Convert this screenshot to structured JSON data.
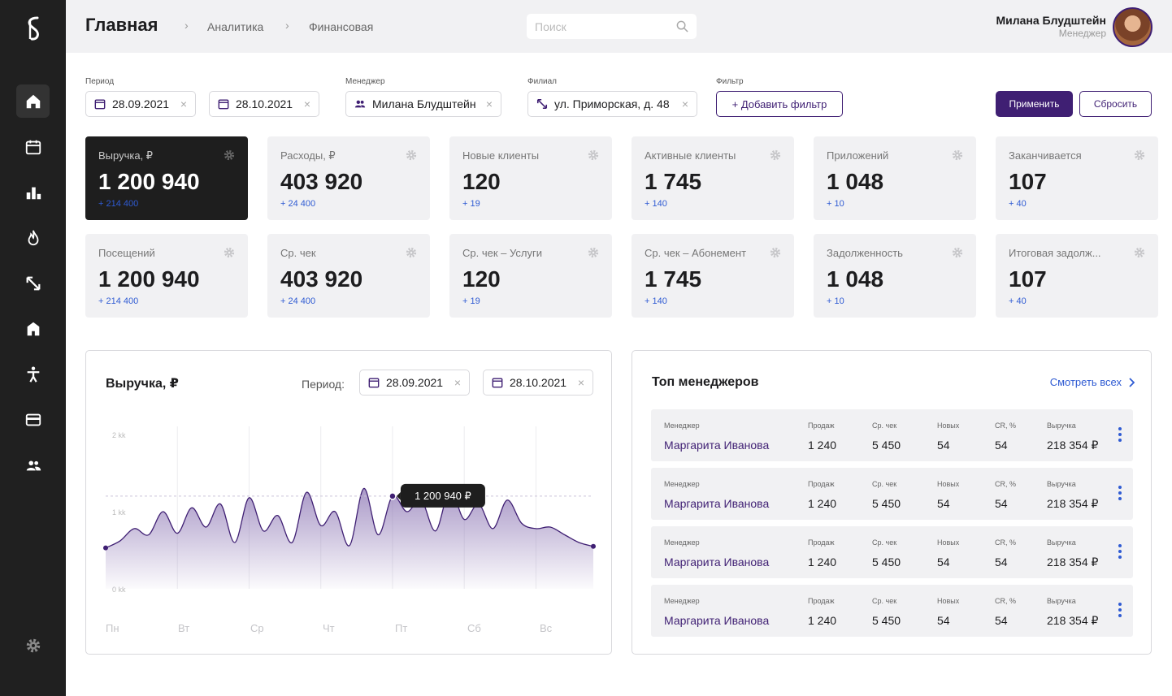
{
  "sidebar": {
    "logo_icon": "brand-logo-icon",
    "items": [
      {
        "icon": "home-icon",
        "active": true
      },
      {
        "icon": "calendar-icon",
        "active": false
      },
      {
        "icon": "bar-chart-icon",
        "active": false
      },
      {
        "icon": "fire-icon",
        "active": false
      },
      {
        "icon": "expand-arrows-icon",
        "active": false
      },
      {
        "icon": "building-icon",
        "active": false
      },
      {
        "icon": "person-icon",
        "active": false
      },
      {
        "icon": "credit-card-icon",
        "active": false
      },
      {
        "icon": "users-icon",
        "active": false
      }
    ],
    "settings_icon": "gear-icon"
  },
  "header": {
    "title": "Главная",
    "breadcrumbs": [
      "Аналитика",
      "Финансовая"
    ],
    "search": {
      "placeholder": "Поиск",
      "value": ""
    },
    "user": {
      "name": "Милана Блудштейн",
      "role": "Менеджер"
    }
  },
  "filters": {
    "period_label": "Период",
    "date_from": "28.09.2021",
    "date_to": "28.10.2021",
    "manager_label": "Менеджер",
    "manager_value": "Милана Блудштейн",
    "branch_label": "Филиал",
    "branch_value": "ул. Приморская, д. 48",
    "filter_label": "Фильтр",
    "add_filter": "+ Добавить фильтр",
    "apply": "Применить",
    "reset": "Сбросить",
    "clear_symbol": "×"
  },
  "kpis": [
    {
      "label": "Выручка, ₽",
      "value": "1 200 940",
      "delta": "+ 214 400",
      "highlighted": true
    },
    {
      "label": "Расходы, ₽",
      "value": "403 920",
      "delta": "+ 24 400"
    },
    {
      "label": "Новые клиенты",
      "value": "120",
      "delta": "+ 19"
    },
    {
      "label": "Активные клиенты",
      "value": "1 745",
      "delta": "+ 140"
    },
    {
      "label": "Приложений",
      "value": "1 048",
      "delta": "+ 10"
    },
    {
      "label": "Заканчивается",
      "value": "107",
      "delta": "+ 40"
    },
    {
      "label": "Посещений",
      "value": "1 200 940",
      "delta": "+ 214 400"
    },
    {
      "label": "Ср. чек",
      "value": "403 920",
      "delta": "+ 24 400"
    },
    {
      "label": "Ср. чек – Услуги",
      "value": "120",
      "delta": "+ 19"
    },
    {
      "label": "Ср. чек – Абонемент",
      "value": "1 745",
      "delta": "+ 140"
    },
    {
      "label": "Задолженность",
      "value": "1 048",
      "delta": "+ 10"
    },
    {
      "label": "Итоговая задолж...",
      "value": "107",
      "delta": "+ 40"
    }
  ],
  "revenue_panel": {
    "title": "Выручка, ₽",
    "period_label": "Период:",
    "date_from": "28.09.2021",
    "date_to": "28.10.2021",
    "tooltip": "1 200 940 ₽"
  },
  "chart_data": {
    "type": "area",
    "y_tick_labels": [
      "2 kk",
      "1 kk",
      "0 kk"
    ],
    "y_ticks": [
      2000000,
      1000000,
      0
    ],
    "ylim": [
      0,
      2000000
    ],
    "categories": [
      "Пн",
      "Вт",
      "Ср",
      "Чт",
      "Пт",
      "Сб",
      "Вс"
    ],
    "x": [
      0,
      0.2,
      0.4,
      0.6,
      0.8,
      1.0,
      1.2,
      1.4,
      1.6,
      1.8,
      2.0,
      2.2,
      2.4,
      2.6,
      2.8,
      3.0,
      3.2,
      3.4,
      3.6,
      3.8,
      4.0,
      4.2,
      4.4,
      4.6,
      4.8,
      5.0,
      5.2,
      5.4,
      5.6,
      5.8,
      6.0,
      6.2,
      6.4,
      6.6,
      6.8
    ],
    "values": [
      530000,
      620000,
      780000,
      700000,
      1000000,
      720000,
      1050000,
      800000,
      1100000,
      600000,
      1180000,
      750000,
      950000,
      600000,
      1250000,
      820000,
      1000000,
      560000,
      1300000,
      700000,
      1200940,
      1000000,
      1150000,
      750000,
      1280000,
      900000,
      1100000,
      780000,
      1150000,
      850000,
      780000,
      800000,
      700000,
      600000,
      550000
    ],
    "highlight_index": 20,
    "title": "Выручка, ₽"
  },
  "top_managers": {
    "title": "Топ менеджеров",
    "see_all": "Смотреть всех",
    "headers": {
      "name": "Менеджер",
      "sales": "Продаж",
      "avg_check": "Ср. чек",
      "new": "Новых",
      "cr": "CR, %",
      "revenue": "Выручка"
    },
    "rows": [
      {
        "name": "Маргарита Иванова",
        "sales": "1 240",
        "avg_check": "5 450",
        "new": "54",
        "cr": "54",
        "revenue": "218 354 ₽"
      },
      {
        "name": "Маргарита Иванова",
        "sales": "1 240",
        "avg_check": "5 450",
        "new": "54",
        "cr": "54",
        "revenue": "218 354 ₽"
      },
      {
        "name": "Маргарита Иванова",
        "sales": "1 240",
        "avg_check": "5 450",
        "new": "54",
        "cr": "54",
        "revenue": "218 354 ₽"
      },
      {
        "name": "Маргарита Иванова",
        "sales": "1 240",
        "avg_check": "5 450",
        "new": "54",
        "cr": "54",
        "revenue": "218 354 ₽"
      }
    ]
  },
  "colors": {
    "accent": "#3f1f73",
    "link": "#2f5bd3",
    "sidebar": "#202020",
    "card": "#f1f1f3"
  }
}
